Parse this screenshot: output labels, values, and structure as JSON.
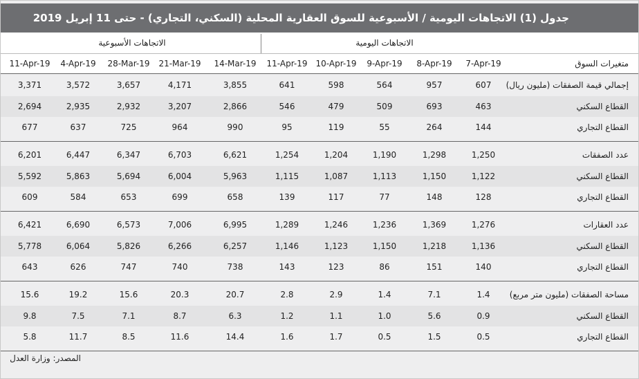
{
  "title": "جدول (1) الاتجاهات اليومية / الأسبوعية  للسوق العقارية المحلية (السكني، التجاري) - حتى 11 إبريل 2019",
  "table": {
    "group_headers": {
      "daily": "الاتجاهات اليومية",
      "weekly": "الاتجاهات الأسبوعية"
    },
    "label_header": "متغيرات السوق",
    "columns": [
      "7-Apr-19",
      "8-Apr-19",
      "9-Apr-19",
      "10-Apr-19",
      "11-Apr-19",
      "14-Mar-19",
      "21-Mar-19",
      "28-Mar-19",
      "4-Apr-19",
      "11-Apr-19"
    ],
    "rows": [
      {
        "label": "إجمالي قيمة الصفقات (مليون ريال)",
        "values": [
          "607",
          "957",
          "564",
          "598",
          "641",
          "3,855",
          "4,171",
          "3,657",
          "3,572",
          "3,371"
        ]
      },
      {
        "label": "القطاع السكني",
        "values": [
          "463",
          "693",
          "509",
          "479",
          "546",
          "2,866",
          "3,207",
          "2,932",
          "2,935",
          "2,694"
        ]
      },
      {
        "label": "القطاع التجاري",
        "values": [
          "144",
          "264",
          "55",
          "119",
          "95",
          "990",
          "964",
          "725",
          "637",
          "677"
        ]
      },
      {
        "label": "عدد الصفقات",
        "values": [
          "1,250",
          "1,298",
          "1,190",
          "1,204",
          "1,254",
          "6,621",
          "6,703",
          "6,347",
          "6,447",
          "6,201"
        ]
      },
      {
        "label": "القطاع السكني",
        "values": [
          "1,122",
          "1,150",
          "1,113",
          "1,087",
          "1,115",
          "5,963",
          "6,004",
          "5,694",
          "5,863",
          "5,592"
        ]
      },
      {
        "label": "القطاع التجاري",
        "values": [
          "128",
          "148",
          "77",
          "117",
          "139",
          "658",
          "699",
          "653",
          "584",
          "609"
        ]
      },
      {
        "label": "عدد العقارات",
        "values": [
          "1,276",
          "1,369",
          "1,236",
          "1,246",
          "1,289",
          "6,995",
          "7,006",
          "6,573",
          "6,690",
          "6,421"
        ]
      },
      {
        "label": "القطاع السكني",
        "values": [
          "1,136",
          "1,218",
          "1,150",
          "1,123",
          "1,146",
          "6,257",
          "6,266",
          "5,826",
          "6,064",
          "5,778"
        ]
      },
      {
        "label": "القطاع التجاري",
        "values": [
          "140",
          "151",
          "86",
          "123",
          "143",
          "738",
          "740",
          "747",
          "626",
          "643"
        ]
      },
      {
        "label": "مساحة الصفقات (مليون متر مربع)",
        "values": [
          "1.4",
          "7.1",
          "1.4",
          "2.9",
          "2.8",
          "20.7",
          "20.3",
          "15.6",
          "19.2",
          "15.6"
        ]
      },
      {
        "label": "القطاع السكني",
        "values": [
          "0.9",
          "5.6",
          "1.0",
          "1.1",
          "1.2",
          "6.3",
          "8.7",
          "7.1",
          "7.5",
          "9.8"
        ]
      },
      {
        "label": "القطاع التجاري",
        "values": [
          "0.5",
          "1.5",
          "0.5",
          "1.7",
          "1.6",
          "14.4",
          "11.6",
          "8.5",
          "11.7",
          "5.8"
        ]
      }
    ]
  },
  "source": "المصدر: وزارة العدل"
}
